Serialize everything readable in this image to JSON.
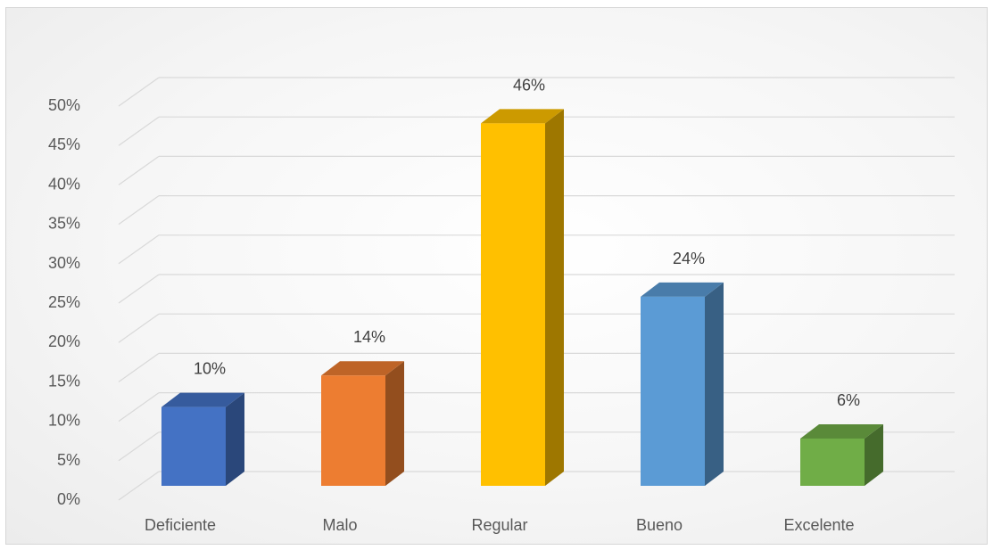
{
  "chart_data": {
    "type": "bar",
    "title": "",
    "xlabel": "",
    "ylabel": "",
    "categories": [
      "Deficiente",
      "Malo",
      "Regular",
      "Bueno",
      "Excelente"
    ],
    "values": [
      10,
      14,
      46,
      24,
      6
    ],
    "value_labels": [
      "10%",
      "14%",
      "46%",
      "24%",
      "6%"
    ],
    "ylim": [
      0,
      50
    ],
    "y_ticks": [
      0,
      5,
      10,
      15,
      20,
      25,
      30,
      35,
      40,
      45,
      50
    ],
    "y_tick_labels": [
      "0%",
      "5%",
      "10%",
      "15%",
      "20%",
      "25%",
      "30%",
      "35%",
      "40%",
      "45%",
      "50%"
    ],
    "grid": true,
    "legend": "none",
    "style": "3d-column",
    "colors": [
      "#4472C4",
      "#ED7D31",
      "#FFC000",
      "#5B9BD5",
      "#70AD47"
    ]
  }
}
